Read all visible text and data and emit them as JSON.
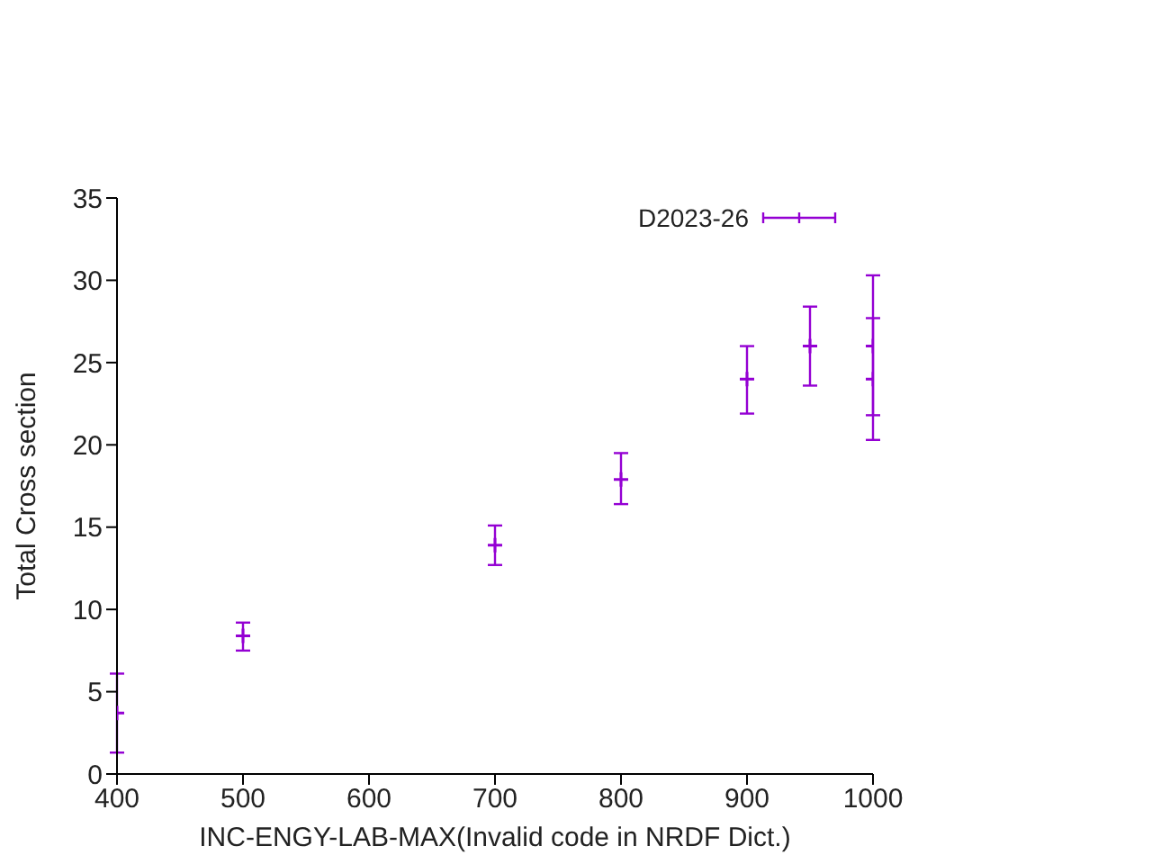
{
  "chart_data": {
    "type": "scatter",
    "xlabel": "INC-ENGY-LAB-MAX(Invalid code in NRDF Dict.)",
    "ylabel": "Total Cross section",
    "x": [
      400,
      500,
      700,
      800,
      900,
      950,
      1000,
      1000
    ],
    "series": [
      {
        "name": "D2023-26",
        "color": "#9400d3",
        "values": [
          3.7,
          8.4,
          13.9,
          17.9,
          24.0,
          26.0,
          26.0,
          24.0
        ],
        "errors": [
          [
            1.3,
            6.1
          ],
          [
            7.5,
            9.2
          ],
          [
            12.7,
            15.1
          ],
          [
            16.4,
            19.5
          ],
          [
            21.9,
            26.0
          ],
          [
            23.6,
            28.4
          ],
          [
            21.8,
            30.3
          ],
          [
            20.3,
            27.7
          ]
        ]
      }
    ],
    "xlim": [
      400,
      1000
    ],
    "xticks": [
      400,
      500,
      600,
      700,
      800,
      900,
      1000
    ],
    "ylim": [
      0,
      35
    ],
    "yticks": [
      0,
      5,
      10,
      15,
      20,
      25,
      30,
      35
    ],
    "legend": "top right",
    "marker": "cross",
    "grid": false
  }
}
